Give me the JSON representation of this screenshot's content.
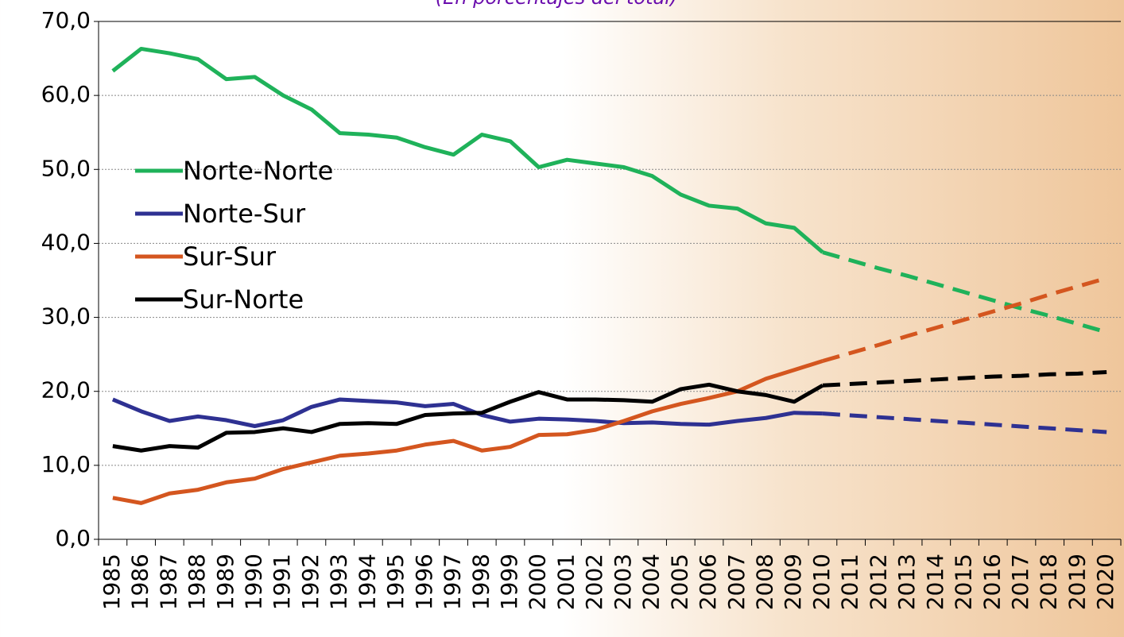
{
  "chart_data": {
    "type": "line",
    "subtitle": "(En porcentajes del total)",
    "categories": [
      "1985",
      "1986",
      "1987",
      "1988",
      "1989",
      "1990",
      "1991",
      "1992",
      "1993",
      "1994",
      "1995",
      "1996",
      "1997",
      "1998",
      "1999",
      "2000",
      "2001",
      "2002",
      "2003",
      "2004",
      "2005",
      "2006",
      "2007",
      "2008",
      "2009",
      "2010",
      "2011",
      "2012",
      "2013",
      "2014",
      "2015",
      "2016",
      "2017",
      "2018",
      "2019",
      "2020"
    ],
    "series": [
      {
        "name": "Norte-Norte",
        "color": "#1fb25a",
        "values": [
          63.3,
          66.3,
          65.7,
          64.9,
          62.2,
          62.5,
          60.0,
          58.1,
          54.9,
          54.7,
          54.3,
          53.0,
          52.0,
          54.7,
          53.8,
          50.3,
          51.3,
          50.8,
          50.3,
          49.1,
          46.6,
          45.1,
          44.7,
          42.7,
          42.1,
          38.8,
          null,
          null,
          null,
          null,
          null,
          null,
          null,
          null,
          null,
          null
        ],
        "projected_values": [
          null,
          null,
          null,
          null,
          null,
          null,
          null,
          null,
          null,
          null,
          null,
          null,
          null,
          null,
          null,
          null,
          null,
          null,
          null,
          null,
          null,
          null,
          null,
          null,
          null,
          38.8,
          37.7,
          36.6,
          35.6,
          34.5,
          33.4,
          32.3,
          31.2,
          30.2,
          29.1,
          28.0
        ]
      },
      {
        "name": "Norte-Sur",
        "color": "#2e3192",
        "values": [
          18.9,
          17.3,
          16.0,
          16.6,
          16.1,
          15.3,
          16.1,
          17.9,
          18.9,
          18.7,
          18.5,
          18.0,
          18.3,
          16.8,
          15.9,
          16.3,
          16.2,
          16.0,
          15.7,
          15.8,
          15.6,
          15.5,
          16.0,
          16.4,
          17.1,
          17.0,
          null,
          null,
          null,
          null,
          null,
          null,
          null,
          null,
          null,
          null
        ],
        "projected_values": [
          null,
          null,
          null,
          null,
          null,
          null,
          null,
          null,
          null,
          null,
          null,
          null,
          null,
          null,
          null,
          null,
          null,
          null,
          null,
          null,
          null,
          null,
          null,
          null,
          null,
          17.0,
          16.75,
          16.5,
          16.25,
          16.0,
          15.75,
          15.5,
          15.25,
          15.0,
          14.75,
          14.5
        ]
      },
      {
        "name": "Sur-Sur",
        "color": "#d4561f",
        "values": [
          5.6,
          4.9,
          6.2,
          6.7,
          7.7,
          8.2,
          9.5,
          10.4,
          11.3,
          11.6,
          12.0,
          12.8,
          13.3,
          12.0,
          12.5,
          14.1,
          14.2,
          14.8,
          16.0,
          17.3,
          18.3,
          19.1,
          20.0,
          21.7,
          22.9,
          24.1,
          null,
          null,
          null,
          null,
          null,
          null,
          null,
          null,
          null,
          null
        ],
        "projected_values": [
          null,
          null,
          null,
          null,
          null,
          null,
          null,
          null,
          null,
          null,
          null,
          null,
          null,
          null,
          null,
          null,
          null,
          null,
          null,
          null,
          null,
          null,
          null,
          null,
          null,
          24.1,
          25.2,
          26.3,
          27.5,
          28.6,
          29.7,
          30.8,
          31.9,
          33.1,
          34.2,
          35.3
        ]
      },
      {
        "name": "Sur-Norte",
        "color": "#000000",
        "values": [
          12.6,
          12.0,
          12.6,
          12.4,
          14.4,
          14.5,
          15.0,
          14.5,
          15.6,
          15.7,
          15.6,
          16.8,
          17.0,
          17.1,
          18.6,
          19.9,
          18.9,
          18.9,
          18.8,
          18.6,
          20.3,
          20.9,
          20.0,
          19.5,
          18.6,
          20.8,
          null,
          null,
          null,
          null,
          null,
          null,
          null,
          null,
          null,
          null
        ],
        "projected_values": [
          null,
          null,
          null,
          null,
          null,
          null,
          null,
          null,
          null,
          null,
          null,
          null,
          null,
          null,
          null,
          null,
          null,
          null,
          null,
          null,
          null,
          null,
          null,
          null,
          null,
          20.8,
          21.0,
          21.2,
          21.4,
          21.6,
          21.8,
          22.0,
          22.1,
          22.3,
          22.4,
          22.6
        ]
      }
    ],
    "ylim": [
      0,
      70
    ],
    "yticks": [
      {
        "value": 0,
        "label": "0,0"
      },
      {
        "value": 10,
        "label": "10,0"
      },
      {
        "value": 20,
        "label": "20,0"
      },
      {
        "value": 30,
        "label": "30,0"
      },
      {
        "value": 40,
        "label": "40,0"
      },
      {
        "value": 50,
        "label": "50,0"
      },
      {
        "value": 60,
        "label": "60,0"
      },
      {
        "value": 70,
        "label": "70,0"
      }
    ],
    "grid": true,
    "legend": "left"
  }
}
